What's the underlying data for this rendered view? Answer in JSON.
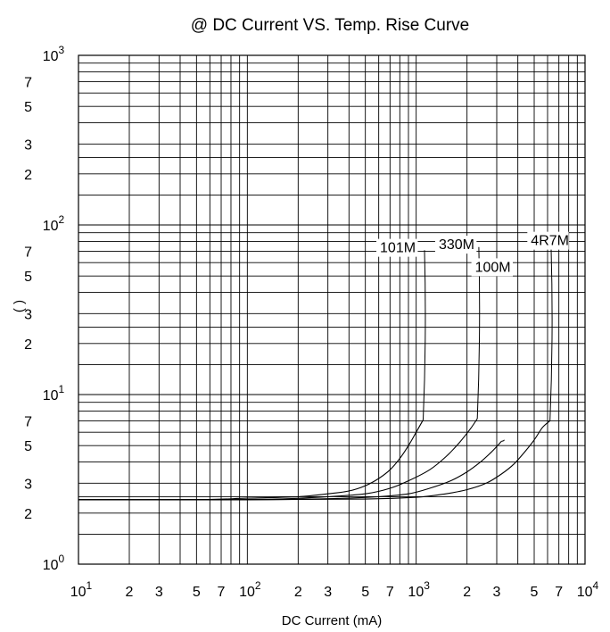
{
  "chart_data": {
    "type": "line",
    "title": "@ DC Current VS. Temp. Rise Curve",
    "xlabel": "DC Current (mA)",
    "ylabel": "( )",
    "x_scale": "log",
    "y_scale": "log",
    "xlim": [
      10,
      10000
    ],
    "ylim": [
      1,
      1000
    ],
    "grid": true,
    "x_tick_labels": [
      {
        "value": 10,
        "base": "10",
        "exp": "1"
      },
      {
        "value": 20,
        "base": "2",
        "exp": ""
      },
      {
        "value": 30,
        "base": "3",
        "exp": ""
      },
      {
        "value": 50,
        "base": "5",
        "exp": ""
      },
      {
        "value": 70,
        "base": "7",
        "exp": ""
      },
      {
        "value": 100,
        "base": "10",
        "exp": "2"
      },
      {
        "value": 200,
        "base": "2",
        "exp": ""
      },
      {
        "value": 300,
        "base": "3",
        "exp": ""
      },
      {
        "value": 500,
        "base": "5",
        "exp": ""
      },
      {
        "value": 700,
        "base": "7",
        "exp": ""
      },
      {
        "value": 1000,
        "base": "10",
        "exp": "3"
      },
      {
        "value": 2000,
        "base": "2",
        "exp": ""
      },
      {
        "value": 3000,
        "base": "3",
        "exp": ""
      },
      {
        "value": 5000,
        "base": "5",
        "exp": ""
      },
      {
        "value": 7000,
        "base": "7",
        "exp": ""
      },
      {
        "value": 10000,
        "base": "10",
        "exp": "4"
      }
    ],
    "y_tick_labels": [
      {
        "value": 1,
        "base": "10",
        "exp": "0"
      },
      {
        "value": 2,
        "base": "2",
        "exp": ""
      },
      {
        "value": 3,
        "base": "3",
        "exp": ""
      },
      {
        "value": 5,
        "base": "5",
        "exp": ""
      },
      {
        "value": 7,
        "base": "7",
        "exp": ""
      },
      {
        "value": 10,
        "base": "10",
        "exp": "1"
      },
      {
        "value": 20,
        "base": "2",
        "exp": ""
      },
      {
        "value": 30,
        "base": "3",
        "exp": ""
      },
      {
        "value": 50,
        "base": "5",
        "exp": ""
      },
      {
        "value": 70,
        "base": "7",
        "exp": ""
      },
      {
        "value": 100,
        "base": "10",
        "exp": "2"
      },
      {
        "value": 200,
        "base": "2",
        "exp": ""
      },
      {
        "value": 300,
        "base": "3",
        "exp": ""
      },
      {
        "value": 500,
        "base": "5",
        "exp": ""
      },
      {
        "value": 700,
        "base": "7",
        "exp": ""
      },
      {
        "value": 1000,
        "base": "10",
        "exp": "3"
      }
    ],
    "series": [
      {
        "name": "101M",
        "points": [
          [
            10,
            2.4
          ],
          [
            50,
            2.4
          ],
          [
            100,
            2.45
          ],
          [
            200,
            2.5
          ],
          [
            300,
            2.6
          ],
          [
            400,
            2.7
          ],
          [
            500,
            2.9
          ],
          [
            600,
            3.2
          ],
          [
            700,
            3.6
          ],
          [
            800,
            4.2
          ],
          [
            900,
            5.0
          ],
          [
            1000,
            6.0
          ],
          [
            1100,
            7.1
          ]
        ],
        "label_value": [
          610,
          69
        ],
        "leader_end": [
          1120,
          71
        ]
      },
      {
        "name": "330M",
        "points": [
          [
            10,
            2.4
          ],
          [
            70,
            2.4
          ],
          [
            150,
            2.42
          ],
          [
            300,
            2.5
          ],
          [
            500,
            2.6
          ],
          [
            700,
            2.8
          ],
          [
            900,
            3.1
          ],
          [
            1200,
            3.6
          ],
          [
            1500,
            4.3
          ],
          [
            1800,
            5.2
          ],
          [
            2100,
            6.3
          ],
          [
            2300,
            7.2
          ]
        ],
        "label_value": [
          1360,
          72
        ],
        "leader_end": [
          2350,
          74
        ]
      },
      {
        "name": "100M",
        "points": [
          [
            10,
            2.4
          ],
          [
            100,
            2.4
          ],
          [
            300,
            2.43
          ],
          [
            600,
            2.5
          ],
          [
            900,
            2.6
          ],
          [
            1200,
            2.8
          ],
          [
            1600,
            3.1
          ],
          [
            2000,
            3.5
          ],
          [
            2400,
            4.0
          ],
          [
            2800,
            4.6
          ],
          [
            3200,
            5.3
          ]
        ],
        "label_value": [
          2230,
          53
        ],
        "leader_end": [
          3300,
          5.4
        ]
      },
      {
        "name": "4R7M",
        "points": [
          [
            10,
            2.4
          ],
          [
            100,
            2.4
          ],
          [
            500,
            2.42
          ],
          [
            1000,
            2.48
          ],
          [
            1500,
            2.6
          ],
          [
            2000,
            2.75
          ],
          [
            2600,
            3.0
          ],
          [
            3200,
            3.4
          ],
          [
            3800,
            3.9
          ],
          [
            4400,
            4.6
          ],
          [
            5000,
            5.4
          ],
          [
            5600,
            6.4
          ],
          [
            6200,
            7.0
          ]
        ],
        "label_value": [
          4780,
          76
        ],
        "leader_end": [
          6300,
          72
        ]
      }
    ]
  }
}
